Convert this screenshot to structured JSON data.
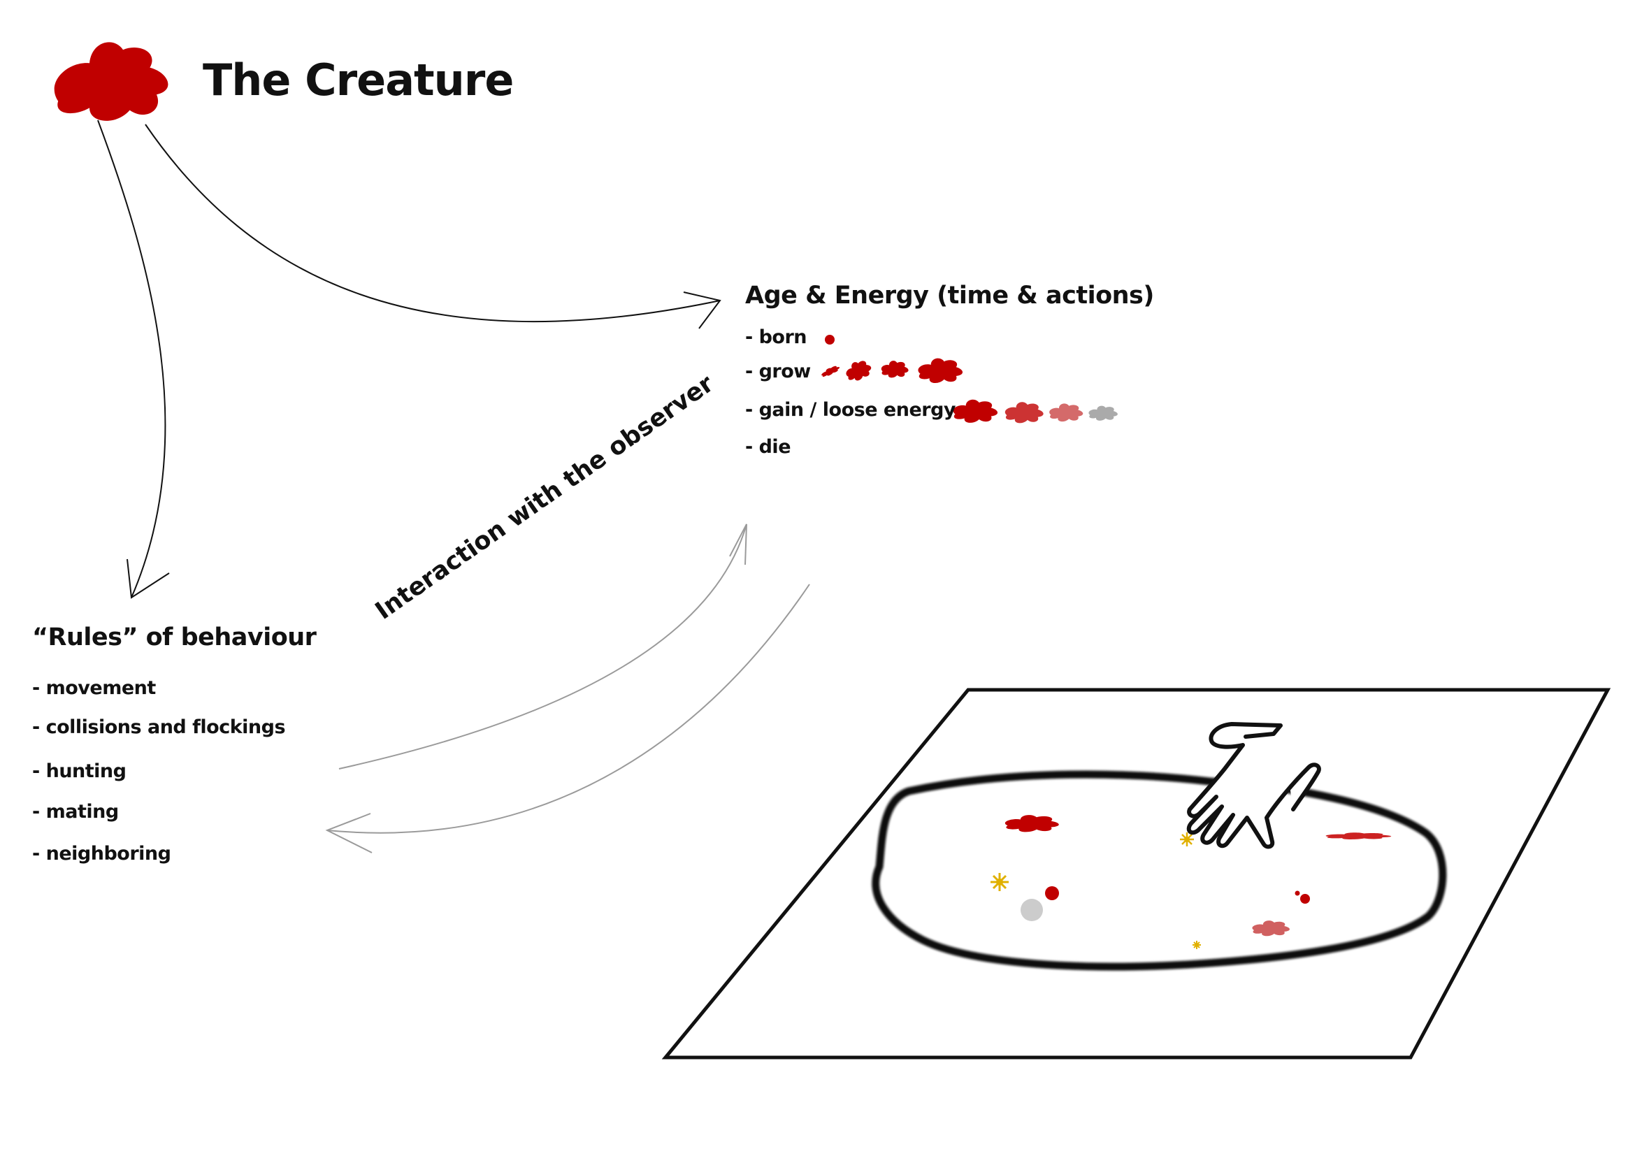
{
  "title": "The Creature",
  "age_energy": {
    "heading": "Age & Energy (time & actions)",
    "items": [
      "- born",
      "- grow",
      "- gain / loose energy",
      "- die"
    ]
  },
  "rules": {
    "heading": "“Rules” of behaviour",
    "items": [
      "- movement",
      "- collisions and flockings",
      "- hunting",
      "- mating",
      "- neighboring"
    ]
  },
  "interaction_label": "Interaction with the observer",
  "colors": {
    "creature_red": "#c00000",
    "faded_red_1": "#cc3333",
    "faded_red_2": "#d46a6a",
    "faded_gray": "#aaaaaa",
    "food_yellow": "#e0b000",
    "dead_gray": "#cccccc"
  }
}
